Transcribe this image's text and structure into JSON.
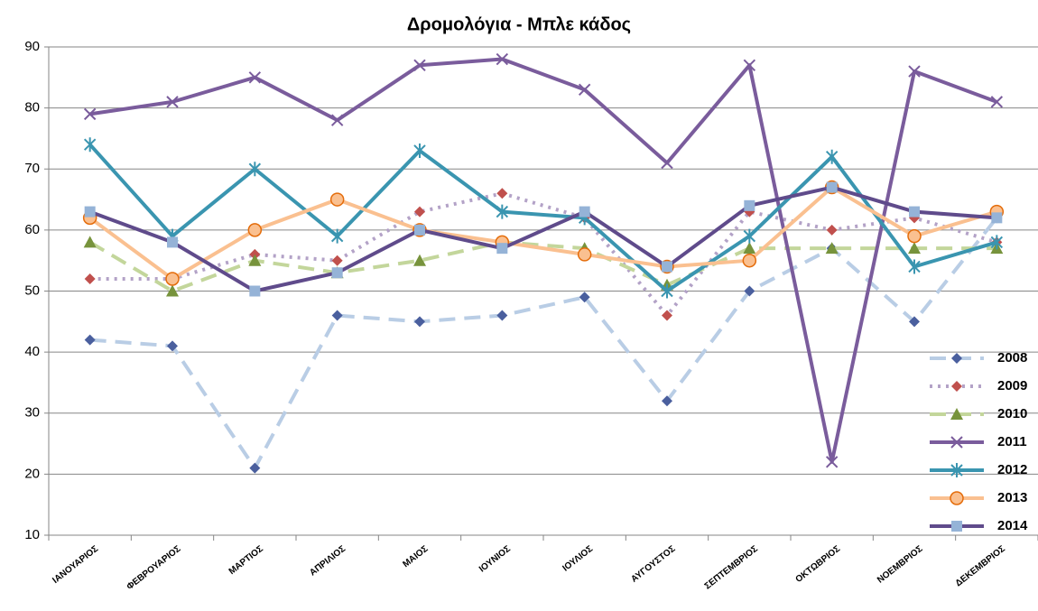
{
  "chart_data": {
    "type": "line",
    "title": "Δρομολόγια - Μπλε κάδος",
    "categories": [
      "ΙΑΝΟΥΑΡΙΟΣ",
      "ΦΕΒΡΟΥΑΡΙΟΣ",
      "ΜΑΡΤΙΟΣ",
      "ΑΠΡΙΛΙΟΣ",
      "ΜΑΙΟΣ",
      "ΙΟΥΝΙΟΣ",
      "ΙΟΥΛΙΟΣ",
      "ΑΥΓΟΥΣΤΟΣ",
      "ΣΕΠΤΕΜΒΡΙΟΣ",
      "ΟΚΤΩΒΡΙΟΣ",
      "ΝΟΕΜΒΡΙΟΣ",
      "ΔΕΚΕΜΒΡΙΟΣ"
    ],
    "series": [
      {
        "name": "2008",
        "color": "#b9cde5",
        "marker_color": "#4a5f9e",
        "marker": "diamond",
        "dash": "dashed",
        "values": [
          42,
          41,
          21,
          46,
          45,
          46,
          49,
          32,
          50,
          57,
          45,
          62
        ]
      },
      {
        "name": "2009",
        "color": "#b3a2c7",
        "marker_color": "#c0504d",
        "marker": "diamond",
        "dash": "dotted",
        "values": [
          52,
          52,
          56,
          55,
          63,
          66,
          62,
          46,
          63,
          60,
          62,
          58
        ]
      },
      {
        "name": "2010",
        "color": "#c3d69b",
        "marker_color": "#77933c",
        "marker": "triangle",
        "dash": "dashed",
        "values": [
          58,
          50,
          55,
          53,
          55,
          58,
          57,
          51,
          57,
          57,
          57,
          57
        ]
      },
      {
        "name": "2011",
        "color": "#7a5c9c",
        "marker_color": "#7a5c9c",
        "marker": "x",
        "dash": "solid",
        "values": [
          79,
          81,
          85,
          78,
          87,
          88,
          83,
          71,
          87,
          22,
          86,
          81
        ]
      },
      {
        "name": "2012",
        "color": "#3a95b0",
        "marker_color": "#3a95b0",
        "marker": "star",
        "dash": "solid",
        "values": [
          74,
          59,
          70,
          59,
          73,
          63,
          62,
          50,
          59,
          72,
          54,
          58
        ]
      },
      {
        "name": "2013",
        "color": "#fac090",
        "marker_color": "#e46c0a",
        "marker": "circle",
        "dash": "solid",
        "values": [
          62,
          52,
          60,
          65,
          60,
          58,
          56,
          54,
          55,
          67,
          59,
          63
        ]
      },
      {
        "name": "2014",
        "color": "#5f4b8b",
        "marker_color": "#95b3d7",
        "marker": "square",
        "dash": "solid",
        "values": [
          63,
          58,
          50,
          53,
          60,
          57,
          63,
          54,
          64,
          67,
          63,
          62
        ]
      }
    ],
    "ylim": [
      10,
      90
    ],
    "yticks": [
      10,
      20,
      30,
      40,
      50,
      60,
      70,
      80,
      90
    ],
    "grid": true,
    "legend": "right"
  }
}
